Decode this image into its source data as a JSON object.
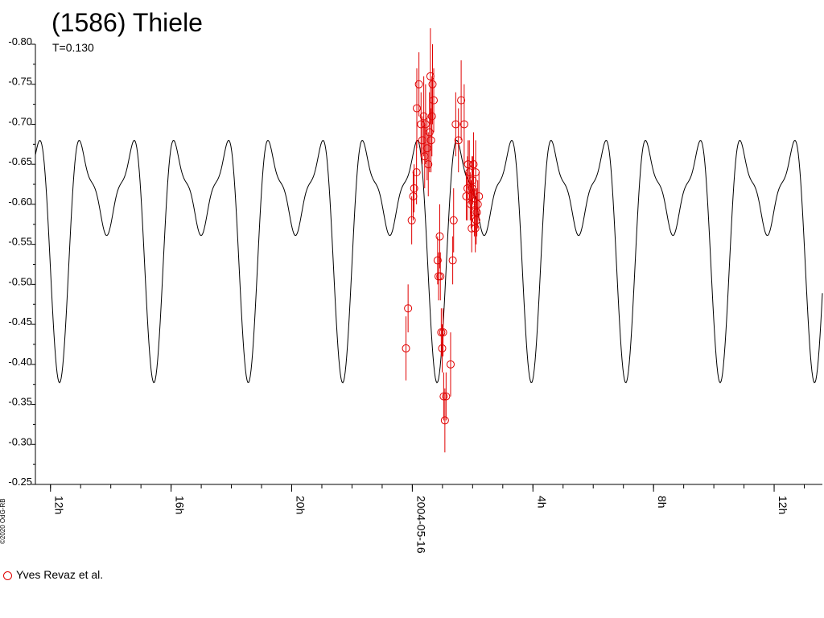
{
  "title": "(1586) Thiele",
  "subtitle": "T=0.130",
  "copyright": "©2020 OdG-RB",
  "legend": {
    "label": "Yves Revaz et al.",
    "color": "#e00000"
  },
  "chart_data": {
    "type": "scatter",
    "title": "(1586) Thiele",
    "ylim": [
      -0.8,
      -0.25
    ],
    "y_inverted": true,
    "y_ticks": [
      "-0.80",
      "-0.75",
      "-0.70",
      "-0.65",
      "-0.60",
      "-0.55",
      "-0.50",
      "-0.45",
      "-0.40",
      "-0.35",
      "-0.30",
      "-0.25"
    ],
    "x_range_hours": [
      11.5,
      37.6
    ],
    "x_tick_labels": [
      {
        "hour": 12,
        "label": "12h"
      },
      {
        "hour": 16,
        "label": "16h"
      },
      {
        "hour": 20,
        "label": "20h"
      },
      {
        "hour": 24,
        "label": "2004-05-16"
      },
      {
        "hour": 28,
        "label": "4h"
      },
      {
        "hour": 32,
        "label": "8h"
      },
      {
        "hour": 36,
        "label": "12h"
      }
    ],
    "model_curve": {
      "period_hours": 3.13,
      "color": "#000000"
    },
    "series": [
      {
        "name": "Yves Revaz et al.",
        "color": "#e00000",
        "points": [
          [
            23.79,
            -0.42,
            0.04
          ],
          [
            23.86,
            -0.47,
            0.03
          ],
          [
            23.98,
            -0.58,
            0.03
          ],
          [
            24.03,
            -0.61,
            0.03
          ],
          [
            24.06,
            -0.62,
            0.03
          ],
          [
            24.14,
            -0.64,
            0.04
          ],
          [
            24.15,
            -0.72,
            0.05
          ],
          [
            24.22,
            -0.75,
            0.04
          ],
          [
            24.29,
            -0.7,
            0.04
          ],
          [
            24.33,
            -0.68,
            0.03
          ],
          [
            24.38,
            -0.71,
            0.05
          ],
          [
            24.41,
            -0.66,
            0.04
          ],
          [
            24.44,
            -0.7,
            0.05
          ],
          [
            24.49,
            -0.67,
            0.04
          ],
          [
            24.53,
            -0.65,
            0.04
          ],
          [
            24.57,
            -0.69,
            0.05
          ],
          [
            24.6,
            -0.76,
            0.06
          ],
          [
            24.62,
            -0.68,
            0.04
          ],
          [
            24.65,
            -0.71,
            0.05
          ],
          [
            24.67,
            -0.75,
            0.05
          ],
          [
            24.71,
            -0.73,
            0.04
          ],
          [
            24.84,
            -0.53,
            0.03
          ],
          [
            24.87,
            -0.51,
            0.03
          ],
          [
            24.91,
            -0.56,
            0.04
          ],
          [
            24.93,
            -0.51,
            0.03
          ],
          [
            24.96,
            -0.44,
            0.03
          ],
          [
            24.99,
            -0.42,
            0.03
          ],
          [
            25.02,
            -0.44,
            0.03
          ],
          [
            25.04,
            -0.36,
            0.03
          ],
          [
            25.08,
            -0.33,
            0.04
          ],
          [
            25.12,
            -0.36,
            0.03
          ],
          [
            25.27,
            -0.4,
            0.04
          ],
          [
            25.34,
            -0.53,
            0.03
          ],
          [
            25.37,
            -0.58,
            0.04
          ],
          [
            25.44,
            -0.7,
            0.04
          ],
          [
            25.53,
            -0.68,
            0.04
          ],
          [
            25.62,
            -0.73,
            0.05
          ],
          [
            25.72,
            -0.7,
            0.05
          ],
          [
            25.79,
            -0.61,
            0.03
          ],
          [
            25.83,
            -0.62,
            0.04
          ],
          [
            25.85,
            -0.65,
            0.03
          ],
          [
            25.89,
            -0.64,
            0.04
          ],
          [
            25.92,
            -0.61,
            0.03
          ],
          [
            25.95,
            -0.6,
            0.03
          ],
          [
            25.97,
            -0.57,
            0.03
          ],
          [
            25.98,
            -0.62,
            0.04
          ],
          [
            26.0,
            -0.63,
            0.03
          ],
          [
            26.03,
            -0.65,
            0.04
          ],
          [
            26.06,
            -0.59,
            0.03
          ],
          [
            26.09,
            -0.57,
            0.03
          ],
          [
            26.1,
            -0.64,
            0.04
          ],
          [
            26.12,
            -0.58,
            0.03
          ],
          [
            26.14,
            -0.59,
            0.03
          ],
          [
            26.17,
            -0.6,
            0.03
          ],
          [
            26.21,
            -0.61,
            0.03
          ]
        ]
      }
    ]
  }
}
